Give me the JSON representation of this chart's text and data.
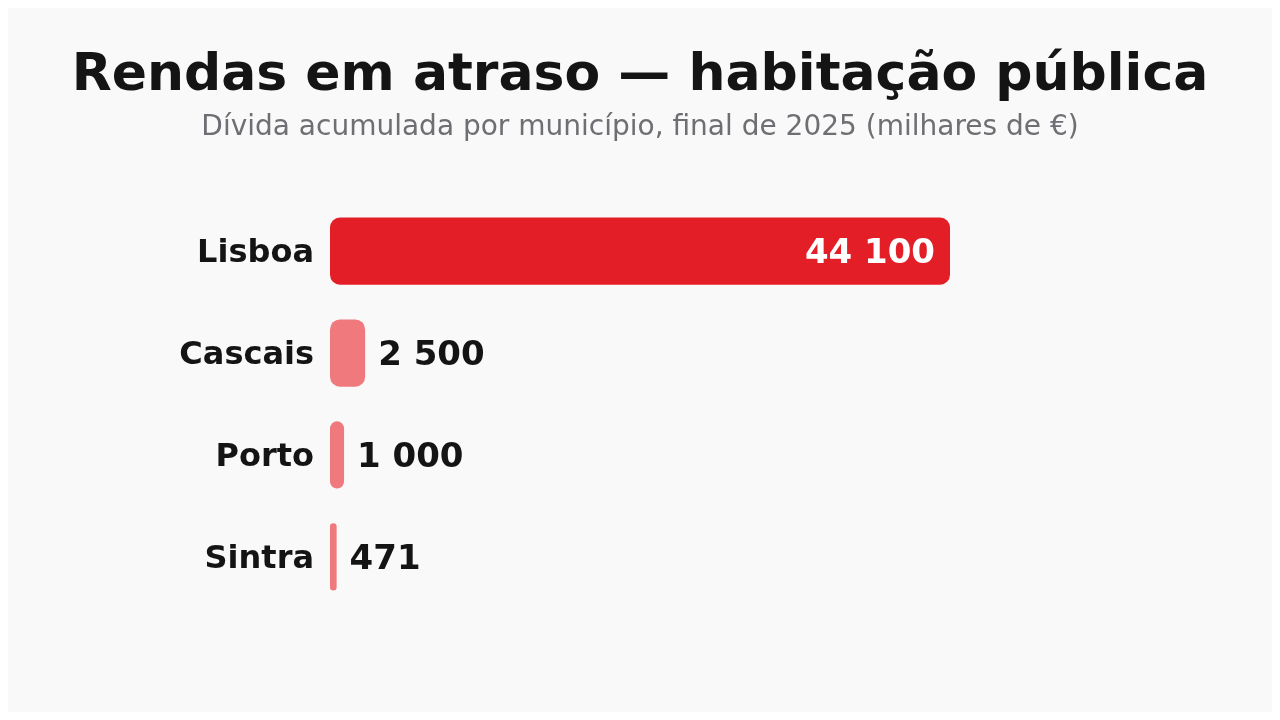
{
  "chart_data": {
    "type": "bar",
    "orientation": "horizontal",
    "title": "Rendas em atraso — habitação pública",
    "subtitle": "Dívida acumulada por município, final de 2025 (milhares de €)",
    "categories": [
      "Lisboa",
      "Cascais",
      "Porto",
      "Sintra"
    ],
    "values": [
      44100,
      2500,
      1000,
      471
    ],
    "colors": [
      "#e41e26",
      "#ef797c",
      "#ef797c",
      "#ef797c"
    ],
    "value_labels": [
      "44 100",
      "2 500",
      "1 000",
      "471"
    ]
  }
}
